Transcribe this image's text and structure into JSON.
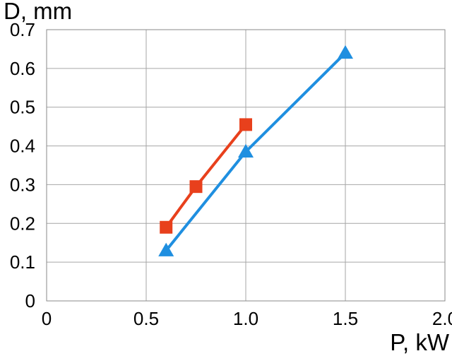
{
  "chart_data": {
    "type": "line",
    "xlabel": "P, kW",
    "ylabel": "D, mm",
    "xlim": [
      0,
      2.0
    ],
    "ylim": [
      0,
      0.7
    ],
    "xticks": [
      "0",
      "0.5",
      "1.0",
      "1.5",
      "2.0"
    ],
    "yticks": [
      "0",
      "0.1",
      "0.2",
      "0.3",
      "0.4",
      "0.5",
      "0.6",
      "0.7"
    ],
    "grid": true,
    "series": [
      {
        "marker": "square",
        "color": "#e8401c",
        "x": [
          0.6,
          0.75,
          1.0
        ],
        "y": [
          0.19,
          0.295,
          0.455
        ]
      },
      {
        "marker": "triangle",
        "color": "#1f8fe0",
        "x": [
          0.6,
          1.0,
          1.5
        ],
        "y": [
          0.13,
          0.385,
          0.64
        ]
      }
    ]
  }
}
